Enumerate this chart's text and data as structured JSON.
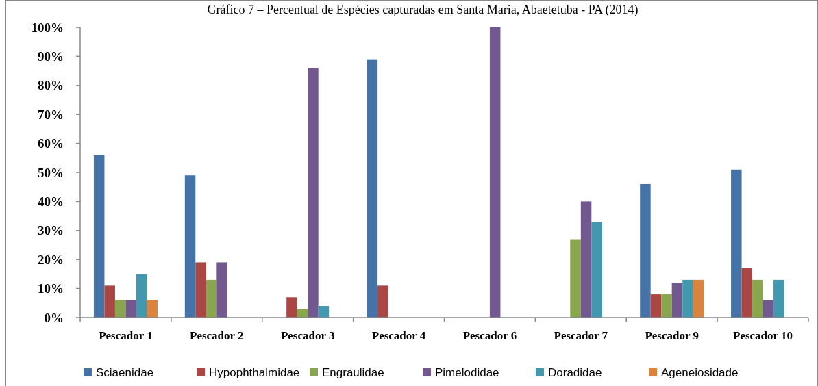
{
  "chart_data": {
    "type": "bar",
    "title": "Gráfico 7 – Percentual de Espécies capturadas em Santa Maria, Abaetetuba - PA (2014)",
    "categories": [
      "Pescador 1",
      "Pescador 2",
      "Pescador 3",
      "Pescador 4",
      "Pescador 6",
      "Pescador 7",
      "Pescador 9",
      "Pescador 10"
    ],
    "series": [
      {
        "name": "Sciaenidae",
        "color": "#4572a7",
        "values": [
          56,
          49,
          0,
          89,
          0,
          0,
          46,
          51
        ]
      },
      {
        "name": "Hypophthalmidae",
        "color": "#aa4643",
        "values": [
          11,
          19,
          7,
          11,
          0,
          0,
          8,
          17
        ]
      },
      {
        "name": "Engraulidae",
        "color": "#89a54e",
        "values": [
          6,
          13,
          3,
          0,
          0,
          27,
          8,
          13
        ]
      },
      {
        "name": "Pimelodidae",
        "color": "#71588f",
        "values": [
          6,
          19,
          86,
          0,
          100,
          40,
          12,
          6
        ]
      },
      {
        "name": "Doradidae",
        "color": "#4198af",
        "values": [
          15,
          0,
          4,
          0,
          0,
          33,
          13,
          13
        ]
      },
      {
        "name": "Ageneiosidade",
        "color": "#db843d",
        "values": [
          6,
          0,
          0,
          0,
          0,
          0,
          13,
          0
        ]
      }
    ],
    "ylim": [
      0,
      100
    ],
    "yticks": [
      {
        "value": 0,
        "label": "0%"
      },
      {
        "value": 10,
        "label": "10%"
      },
      {
        "value": 20,
        "label": "20%"
      },
      {
        "value": 30,
        "label": "30%"
      },
      {
        "value": 40,
        "label": "40%"
      },
      {
        "value": 50,
        "label": "50%"
      },
      {
        "value": 60,
        "label": "60%"
      },
      {
        "value": 70,
        "label": "70%"
      },
      {
        "value": 80,
        "label": "80%"
      },
      {
        "value": 90,
        "label": "90%"
      },
      {
        "value": 100,
        "label": "100%"
      }
    ],
    "grid": false,
    "legend": "bottom"
  }
}
